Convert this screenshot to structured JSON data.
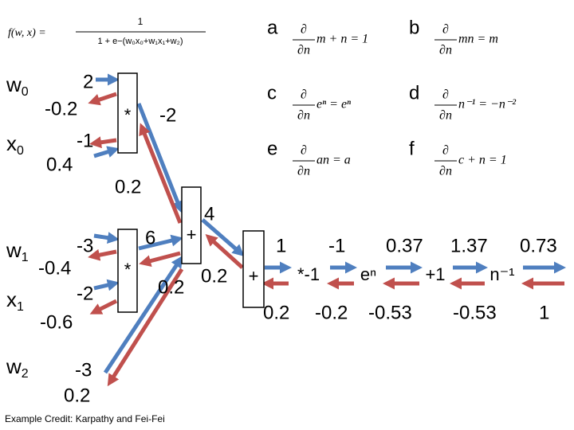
{
  "formula": {
    "lhs": "f(w, x) =",
    "numerator": "1",
    "denominator": "1 + e−(w₀x₀+w₁x₁+w₂)"
  },
  "rules": [
    {
      "label": "a",
      "numerator": "∂",
      "denominator": "∂n",
      "expression": "m + n = 1"
    },
    {
      "label": "b",
      "numerator": "∂",
      "denominator": "∂n",
      "expression": "mn = m"
    },
    {
      "label": "c",
      "numerator": "∂",
      "denominator": "∂n",
      "expression": "eⁿ = eⁿ"
    },
    {
      "label": "d",
      "numerator": "∂",
      "denominator": "∂n",
      "expression": "n⁻¹ = −n⁻²"
    },
    {
      "label": "e",
      "numerator": "∂",
      "denominator": "∂n",
      "expression": "an = a"
    },
    {
      "label": "f",
      "numerator": "∂",
      "denominator": "∂n",
      "expression": "c + n = 1"
    }
  ],
  "inputs": [
    {
      "name": "w",
      "subscript": "0",
      "forward": "2",
      "gradient": "-0.2"
    },
    {
      "name": "x",
      "subscript": "0",
      "forward": "-1",
      "gradient": "0.4"
    },
    {
      "name": "w",
      "subscript": "1",
      "forward": "-3",
      "gradient": "-0.4"
    },
    {
      "name": "x",
      "subscript": "1",
      "forward": "-2",
      "gradient": "-0.6"
    },
    {
      "name": "w",
      "subscript": "2",
      "forward": "-3",
      "gradient": "0.2"
    }
  ],
  "nodes": [
    "*",
    "*",
    "+",
    "+",
    "*-1",
    "eⁿ",
    "+1",
    "n⁻¹"
  ],
  "edges": [
    {
      "forward": "-2",
      "gradient": "0.2"
    },
    {
      "forward": "6",
      "gradient": "0.2"
    },
    {
      "forward": "4",
      "gradient": "0.2"
    },
    {
      "forward": "1",
      "gradient": "0.2"
    },
    {
      "forward": "-1",
      "gradient": "-0.2"
    },
    {
      "forward": "0.37",
      "gradient": "-0.53"
    },
    {
      "forward": "1.37",
      "gradient": "-0.53"
    },
    {
      "forward": "0.73",
      "gradient": "1"
    }
  ],
  "credit": "Example Credit: Karpathy and Fei-Fei"
}
